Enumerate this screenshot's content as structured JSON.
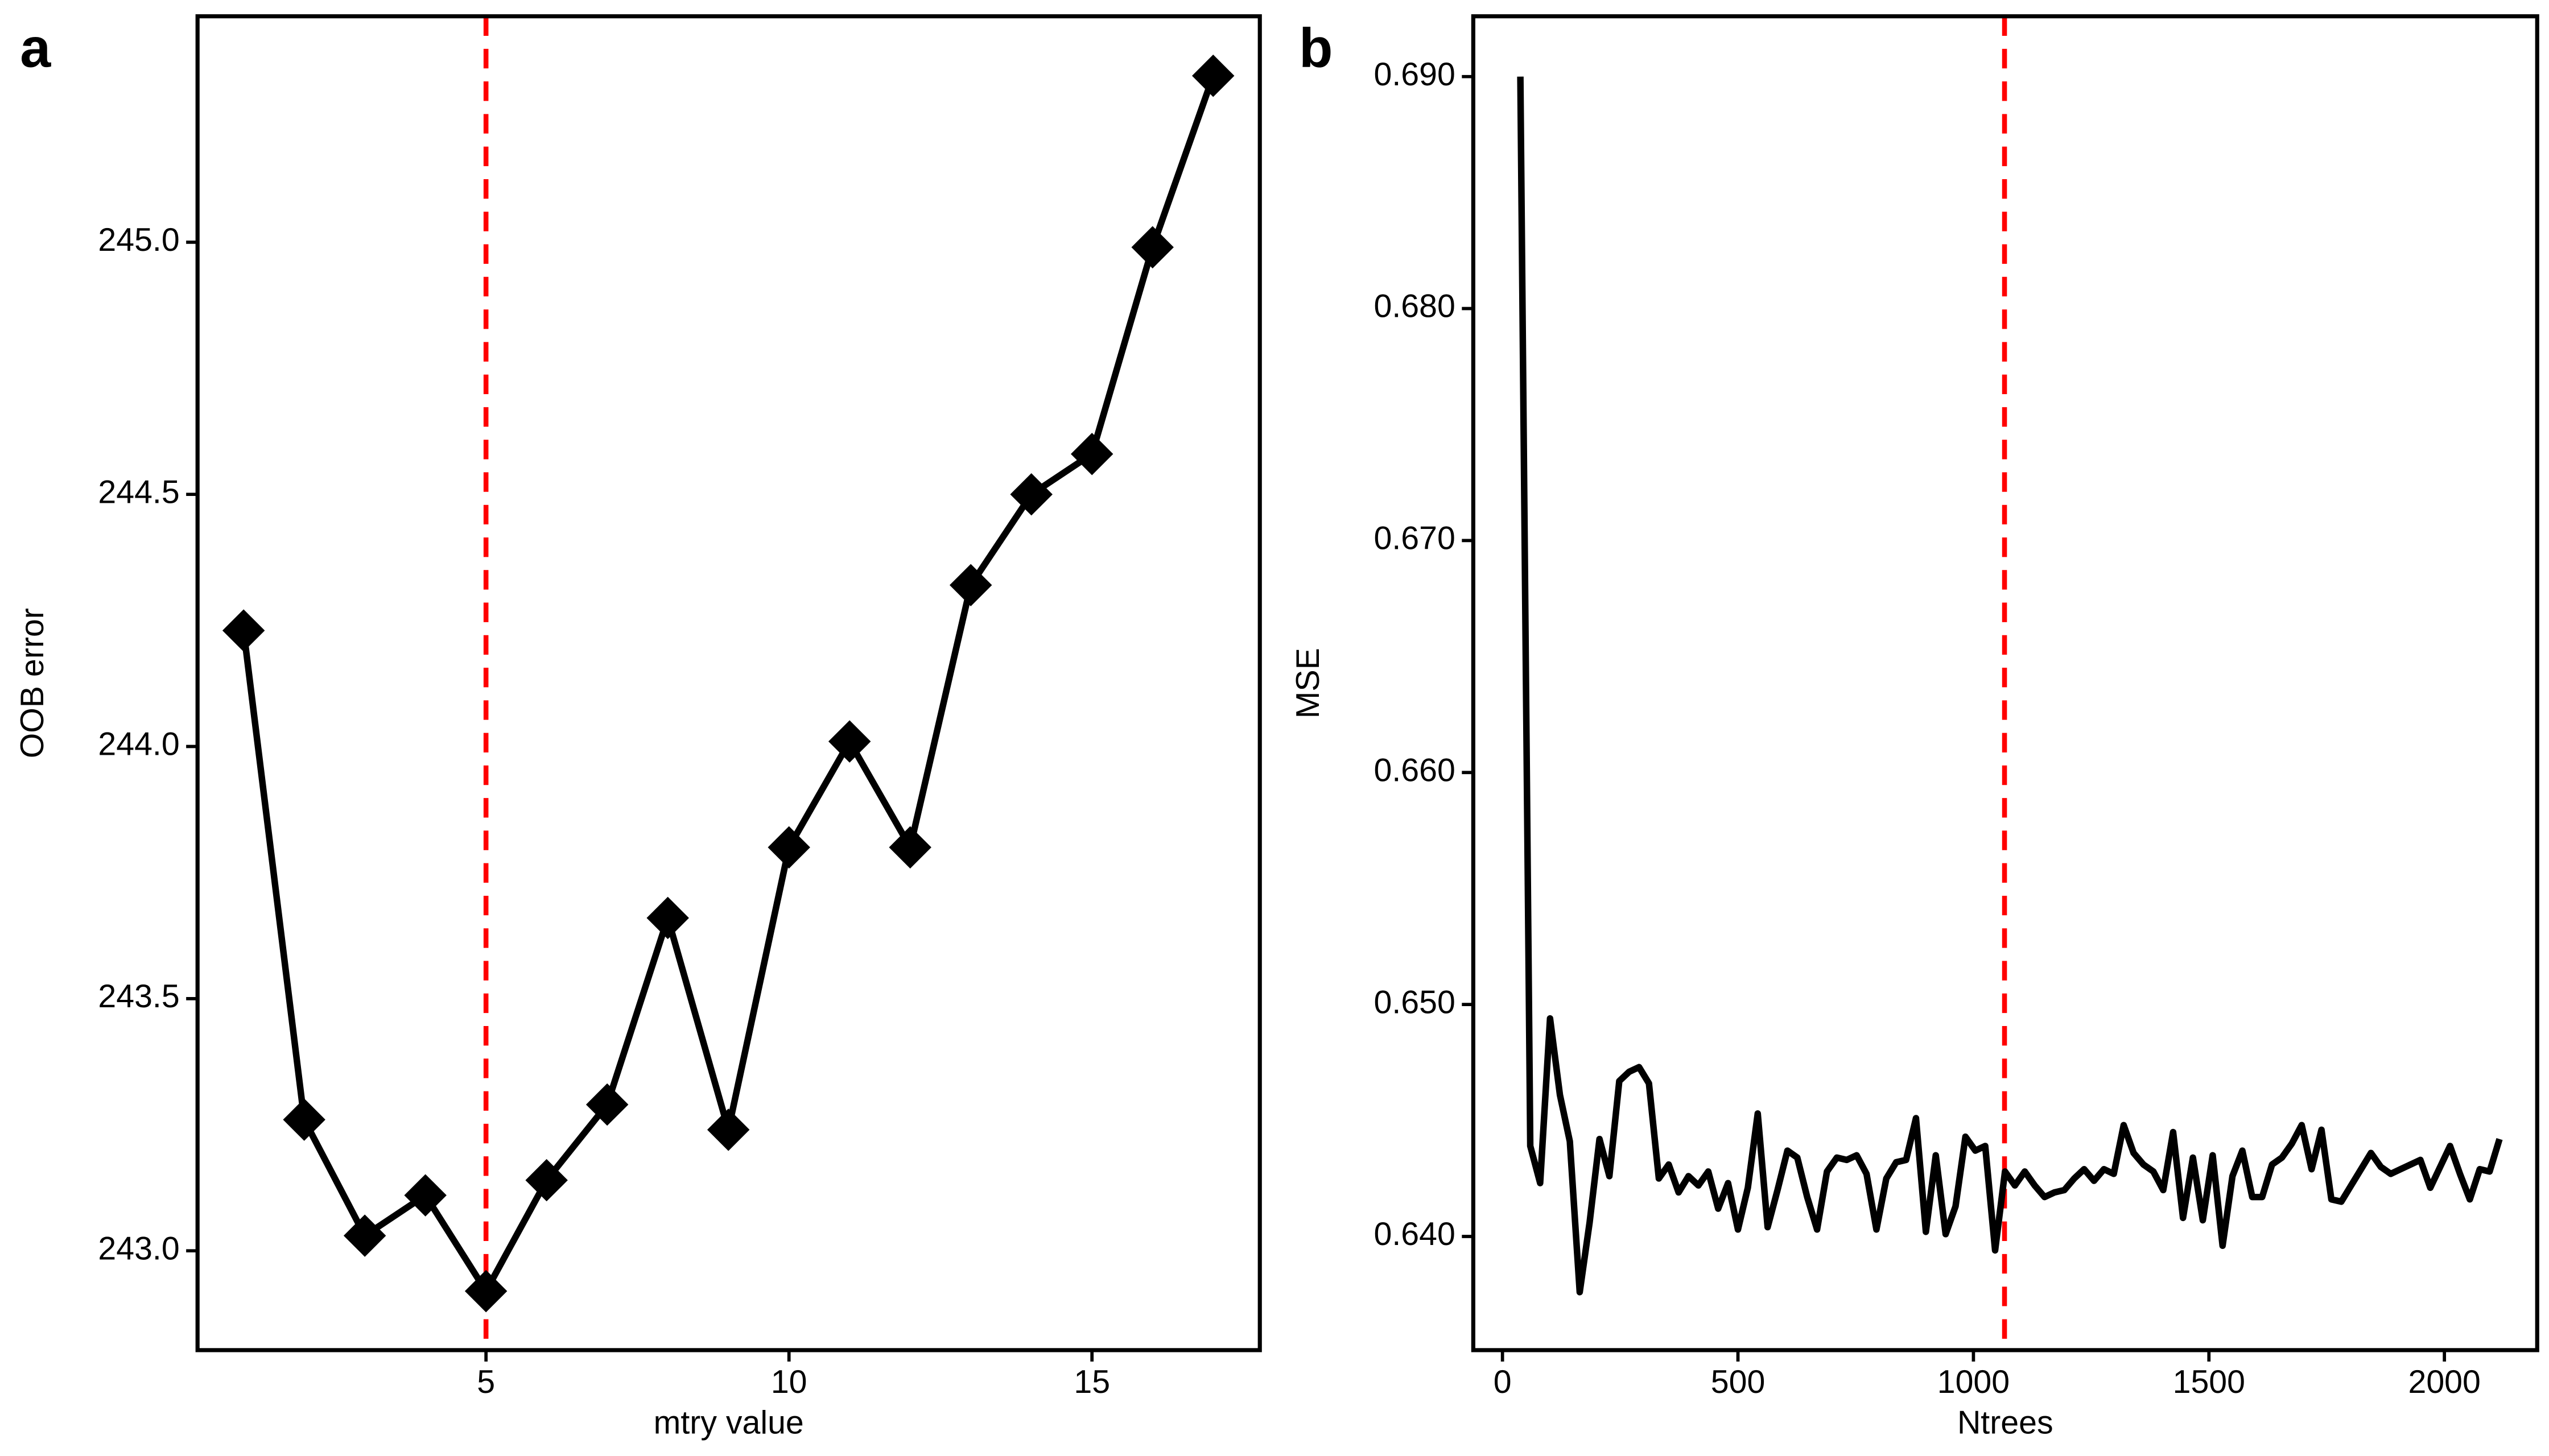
{
  "chart_data": [
    {
      "type": "line",
      "panel_label": "a",
      "xlabel": "mtry value",
      "ylabel": "OOB error",
      "marker": "diamond",
      "color": "#000000",
      "x": [
        1,
        2,
        3,
        4,
        5,
        6,
        7,
        8,
        9,
        10,
        11,
        12,
        13,
        14,
        15,
        16,
        17
      ],
      "values": [
        244.23,
        243.26,
        243.03,
        243.11,
        242.92,
        243.14,
        243.29,
        243.66,
        243.24,
        243.8,
        244.01,
        243.8,
        244.32,
        244.5,
        244.58,
        244.99,
        245.33
      ],
      "xlim": [
        0.24,
        17.77
      ],
      "xticks": [
        5,
        10,
        15
      ],
      "ylim": [
        242.803,
        245.448
      ],
      "yticks": [
        {
          "value": 243,
          "label": "243.0"
        },
        243.5,
        {
          "value": 244,
          "label": "244.0"
        },
        244.5,
        {
          "value": 245,
          "label": "245.0"
        }
      ],
      "vline": 5,
      "vline_color": "#ff0000"
    },
    {
      "type": "line",
      "panel_label": "b",
      "xlabel": "Ntrees",
      "ylabel": "MSE",
      "marker": "none",
      "color": "#000000",
      "x": [
        38,
        59,
        80,
        101,
        122,
        143,
        164,
        185,
        206,
        227,
        248,
        269,
        290,
        311,
        332,
        353,
        374,
        395,
        416,
        437,
        458,
        479,
        500,
        521,
        542,
        563,
        584,
        605,
        626,
        647,
        668,
        689,
        710,
        731,
        752,
        773,
        794,
        815,
        836,
        857,
        878,
        899,
        920,
        941,
        962,
        983,
        1004,
        1025,
        1046,
        1067,
        1088,
        1109,
        1130,
        1151,
        1172,
        1193,
        1214,
        1235,
        1256,
        1277,
        1298,
        1319,
        1340,
        1361,
        1382,
        1403,
        1424,
        1445,
        1466,
        1487,
        1508,
        1529,
        1550,
        1571,
        1592,
        1613,
        1634,
        1655,
        1676,
        1697,
        1718,
        1739,
        1760,
        1781,
        1802,
        1823,
        1844,
        1865,
        1886,
        1907,
        1928,
        1949,
        1970,
        1991,
        2012,
        2033,
        2054,
        2075,
        2096,
        2117
      ],
      "values": [
        0.69,
        0.6439,
        0.6423,
        0.6494,
        0.6461,
        0.6441,
        0.6376,
        0.6406,
        0.6442,
        0.6426,
        0.6467,
        0.6471,
        0.6473,
        0.6466,
        0.6425,
        0.6431,
        0.6419,
        0.6426,
        0.6422,
        0.6428,
        0.6412,
        0.6423,
        0.6403,
        0.6421,
        0.6453,
        0.6404,
        0.642,
        0.6437,
        0.6434,
        0.6417,
        0.6403,
        0.6428,
        0.6434,
        0.6433,
        0.6435,
        0.6427,
        0.6403,
        0.6425,
        0.6432,
        0.6433,
        0.6451,
        0.6402,
        0.6435,
        0.6401,
        0.6413,
        0.6443,
        0.6437,
        0.6439,
        0.6394,
        0.6428,
        0.6422,
        0.6428,
        0.6422,
        0.6417,
        0.6419,
        0.642,
        0.6425,
        0.6429,
        0.6424,
        0.6429,
        0.6427,
        0.6448,
        0.6436,
        0.6431,
        0.6428,
        0.642,
        0.6445,
        0.6408,
        0.6434,
        0.6407,
        0.6435,
        0.6396,
        0.6426,
        0.6437,
        0.6417,
        0.6417,
        0.6431,
        0.6434,
        0.644,
        0.6448,
        0.6429,
        0.6446,
        0.6416,
        0.6415,
        0.6422,
        0.6429,
        0.6436,
        0.643,
        0.6427,
        0.6429,
        0.6431,
        0.6433,
        0.6421,
        0.643,
        0.6439,
        0.6427,
        0.6416,
        0.6429,
        0.6428,
        0.6442
      ],
      "xlim": [
        -62,
        2197
      ],
      "xticks": [
        0,
        500,
        1000,
        1500,
        2000
      ],
      "ylim": [
        0.6351,
        0.6926
      ],
      "yticks": [
        {
          "value": 0.64,
          "label": "0.640"
        },
        {
          "value": 0.65,
          "label": "0.650"
        },
        {
          "value": 0.66,
          "label": "0.660"
        },
        {
          "value": 0.67,
          "label": "0.670"
        },
        {
          "value": 0.68,
          "label": "0.680"
        },
        {
          "value": 0.69,
          "label": "0.690"
        }
      ],
      "vline": 1066,
      "vline_color": "#ff0000"
    }
  ]
}
